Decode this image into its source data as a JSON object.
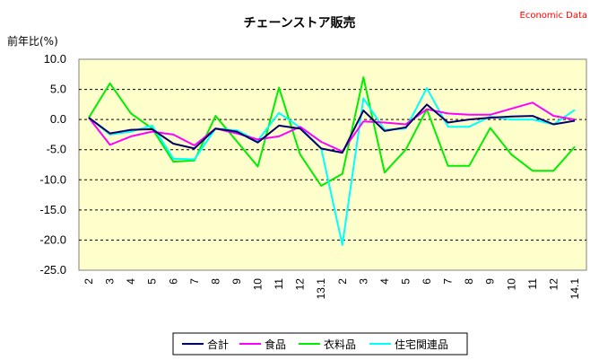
{
  "chart_data": {
    "type": "line",
    "title": "チェーンストア販売",
    "credit": "Economic Data",
    "ylabel": "前年比(%)",
    "ylim": [
      -25,
      10
    ],
    "yticks": [
      "10.0",
      "5.0",
      "0.0",
      "-5.0",
      "-10.0",
      "-15.0",
      "-20.0",
      "-25.0"
    ],
    "grid": "horizontal dashed",
    "legend_position": "bottom",
    "categories": [
      "2",
      "3",
      "4",
      "5",
      "6",
      "7",
      "8",
      "9",
      "10",
      "11",
      "12",
      "13.1",
      "2",
      "3",
      "4",
      "5",
      "6",
      "7",
      "8",
      "9",
      "10",
      "11",
      "12",
      "14.1"
    ],
    "series": [
      {
        "name": "合計",
        "color": "#000066",
        "values": [
          0.3,
          -2.3,
          -1.7,
          -1.6,
          -4.0,
          -4.8,
          -1.5,
          -2.0,
          -3.8,
          -1.0,
          -1.5,
          -4.8,
          -5.5,
          1.5,
          -1.9,
          -1.3,
          2.5,
          -0.5,
          0.0,
          0.3,
          0.5,
          0.6,
          -0.8,
          -0.2
        ]
      },
      {
        "name": "食品",
        "color": "#ff00ff",
        "values": [
          0.3,
          -4.2,
          -2.8,
          -2.0,
          -2.5,
          -4.3,
          -1.5,
          -2.3,
          -3.3,
          -2.8,
          -1.2,
          -3.7,
          -5.3,
          -0.3,
          -0.5,
          -0.8,
          1.7,
          1.0,
          0.8,
          0.8,
          1.8,
          2.8,
          0.6,
          0.0
        ]
      },
      {
        "name": "衣料品",
        "color": "#00ee00",
        "values": [
          0.3,
          6.0,
          1.0,
          -1.5,
          -7.0,
          -6.8,
          0.6,
          -3.6,
          -7.8,
          5.3,
          -5.8,
          -11.0,
          -9.0,
          7.0,
          -8.8,
          -5.0,
          1.7,
          -7.7,
          -7.7,
          -1.4,
          -5.8,
          -8.5,
          -8.5,
          -4.5
        ]
      },
      {
        "name": "住宅関連品",
        "color": "#00ffff",
        "values": [
          0.3,
          -2.5,
          -2.0,
          -1.0,
          -6.5,
          -6.6,
          -1.5,
          -1.8,
          -3.5,
          1.1,
          -1.3,
          -4.8,
          -20.8,
          3.5,
          -1.7,
          -1.5,
          5.2,
          -1.2,
          -1.2,
          0.5,
          0.0,
          0.0,
          -0.8,
          1.6
        ]
      }
    ]
  }
}
